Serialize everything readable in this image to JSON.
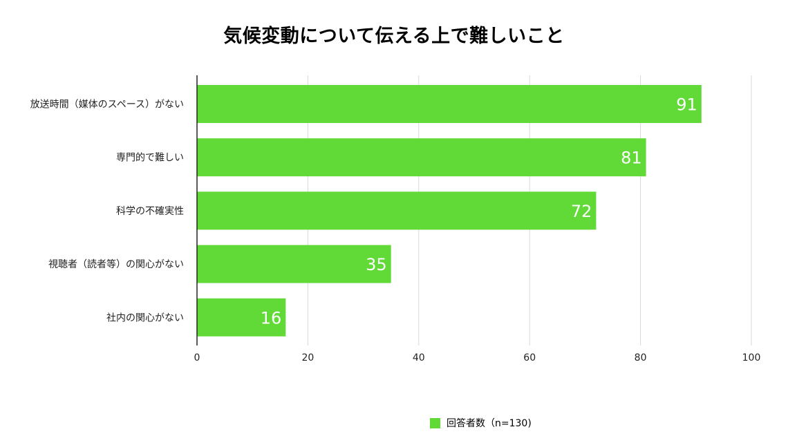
{
  "chart_data": {
    "type": "bar",
    "orientation": "horizontal",
    "title": "気候変動について伝える上で難しいこと",
    "categories": [
      "放送時間（媒体のスペース）がない",
      "専門的で難しい",
      "科学の不確実性",
      "視聴者（読者等）の関心がない",
      "社内の関心がない"
    ],
    "series": [
      {
        "name": "回答者数（n=130)",
        "values": [
          91,
          81,
          72,
          35,
          16
        ]
      }
    ],
    "xlim": [
      0,
      100
    ],
    "xticks": [
      0,
      20,
      40,
      60,
      80,
      100
    ],
    "xlabel": "",
    "ylabel": "",
    "grid": "vertical",
    "legend_position": "bottom",
    "data_labels": "inside-end",
    "bar_color": "#61DA38",
    "label_color": "#ffffff"
  }
}
